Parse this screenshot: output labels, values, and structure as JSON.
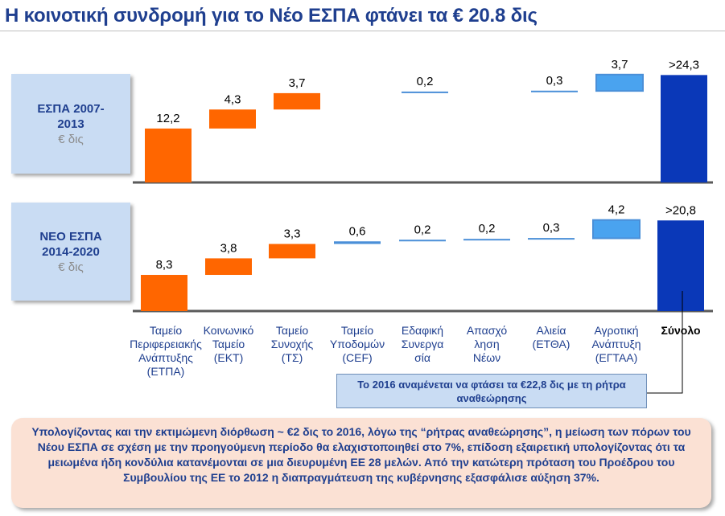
{
  "title": "Η κοινοτική συνδρομή για το Νέο ΕΣΠΑ φτάνει τα € 20.8 δις",
  "rows": [
    {
      "line1": "ΕΣΠΑ 2007-",
      "line2": "2013",
      "unit": "€ δις"
    },
    {
      "line1": "ΝΕΟ ΕΣΠΑ",
      "line2": "2014-2020",
      "unit": "€ δις"
    }
  ],
  "chart_data": [
    {
      "type": "bar",
      "categories": [
        "Ταμείο Περιφερειακής Ανάπτυξης (ΕΤΠΑ)",
        "Κοινωνικό Ταμείο (ΕΚΤ)",
        "Ταμείο Συνοχής (ΤΣ)",
        "Ταμείο Υποδομών (CEF)",
        "Εδαφική Συνεργασία",
        "Απασχόληση Νέων",
        "Αλιεία (ΕΤΘΑ)",
        "Αγροτική Ανάπτυξη (ΕΓΤΑΑ)",
        "Σύνολο"
      ],
      "values": [
        12.2,
        4.3,
        3.7,
        null,
        0.2,
        null,
        0.3,
        3.7,
        24.3
      ],
      "value_labels": [
        "12,2",
        "4,3",
        "3,7",
        "",
        "0,2",
        "",
        "0,3",
        "3,7",
        ">24,3"
      ],
      "series_type": "waterfall"
    },
    {
      "type": "bar",
      "categories": [
        "Ταμείο Περιφερειακής Ανάπτυξης (ΕΤΠΑ)",
        "Κοινωνικό Ταμείο (ΕΚΤ)",
        "Ταμείο Συνοχής (ΤΣ)",
        "Ταμείο Υποδομών (CEF)",
        "Εδαφική Συνεργασία",
        "Απασχόληση Νέων",
        "Αλιεία (ΕΤΘΑ)",
        "Αγροτική Ανάπτυξη (ΕΓΤΑΑ)",
        "Σύνολο"
      ],
      "values": [
        8.3,
        3.8,
        3.3,
        0.6,
        0.2,
        0.2,
        0.3,
        4.2,
        20.8
      ],
      "value_labels": [
        "8,3",
        "3,8",
        "3,3",
        "0,6",
        "0,2",
        "0,2",
        "0,3",
        "4,2",
        ">20,8"
      ],
      "series_type": "waterfall"
    }
  ],
  "category_labels": [
    [
      "Ταμείο",
      "Περιφερειακής",
      "Ανάπτυξης",
      "(ΕΤΠΑ)"
    ],
    [
      "Κοινωνικό",
      "Ταμείο",
      "(ΕΚΤ)"
    ],
    [
      "Ταμείο",
      "Συνοχής",
      "(ΤΣ)"
    ],
    [
      "Ταμείο",
      "Υποδομών",
      "(CEF)"
    ],
    [
      "Εδαφική",
      "Συνεργα",
      "σία"
    ],
    [
      "Απασχό",
      "ληση",
      "Νέων"
    ],
    [
      "Αλιεία",
      "(ΕΤΘΑ)"
    ],
    [
      "Αγροτική",
      "Ανάπτυξη",
      "(ΕΓΤΑΑ)"
    ],
    [
      "Σύνολο"
    ]
  ],
  "colors": {
    "eu_funds": "#ff6600",
    "small_funds": "#4a8fd8",
    "agri": "#4aa3ef",
    "total": "#0a38b8",
    "axis": "#5a5a5a",
    "title": "#1f3f8f"
  },
  "note": "Το 2016 αναμένεται να φτάσει τα €22,8 δις με τη ρήτρα αναθεώρησης",
  "footer": "Υπολογίζοντας και την εκτιμώμενη διόρθωση ~ €2 δις το 2016, λόγω της “ρήτρας αναθεώρησης”, η μείωση των πόρων του Νέου ΕΣΠΑ σε σχέση με την προηγούμενη περίοδο θα ελαχιστοποιηθεί στο 7%, επίδοση εξαιρετική υπολογίζοντας ότι τα μειωμένα ήδη κονδύλια κατανέμονται σε μια διευρυμένη ΕΕ 28 μελών. Από την κατώτερη πρόταση του Προέδρου του Συμβουλίου της ΕΕ το 2012 η διαπραγμάτευση της κυβέρνησης εξασφάλισε αύξηση 37%."
}
